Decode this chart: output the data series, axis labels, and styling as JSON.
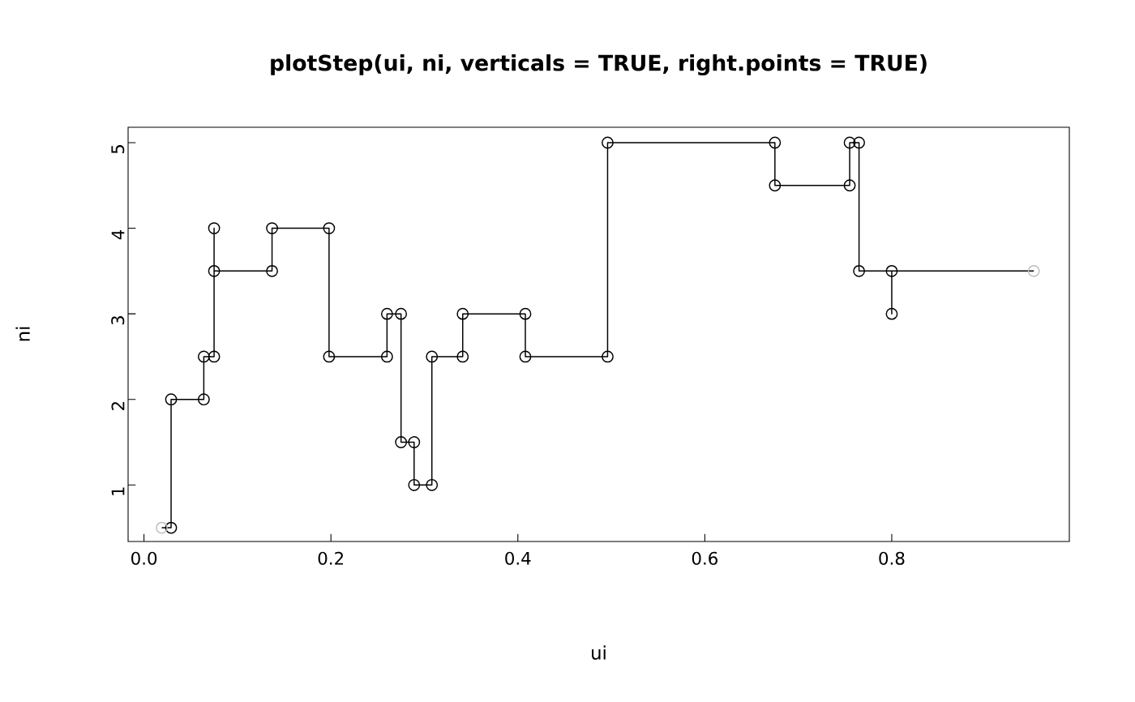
{
  "chart_data": {
    "type": "line",
    "title": "plotStep(ui, ni, verticals = TRUE, right.points = TRUE)",
    "xlabel": "ui",
    "ylabel": "ni",
    "xlim": [
      -0.017,
      0.99
    ],
    "ylim": [
      0.34,
      5.18
    ],
    "xticks": [
      {
        "value": 0,
        "label": "0.0"
      },
      0.2,
      0.4,
      0.6,
      0.8
    ],
    "yticks": [
      1,
      2,
      3,
      4,
      5
    ],
    "grid": false,
    "series": [
      {
        "marker": "none",
        "line_style": "solid",
        "color": "#000000",
        "x": [
          0.019,
          0.029,
          0.029,
          0.064,
          0.064,
          0.075,
          0.075,
          0.075,
          0.137,
          0.137,
          0.198,
          0.198,
          0.26,
          0.26,
          0.275,
          0.275,
          0.289,
          0.289,
          0.308,
          0.308,
          0.341,
          0.341,
          0.408,
          0.408,
          0.496,
          0.496,
          0.675,
          0.675,
          0.755,
          0.755,
          0.765,
          0.765,
          0.8,
          0.8,
          0.8,
          0.952
        ],
        "values": [
          0.5,
          0.5,
          2,
          2,
          2.5,
          2.5,
          4,
          3.5,
          3.5,
          4,
          4,
          2.5,
          2.5,
          3,
          3,
          1.5,
          1.5,
          1,
          1,
          2.5,
          2.5,
          3,
          3,
          2.5,
          2.5,
          5,
          5,
          4.5,
          4.5,
          5,
          5,
          3.5,
          3.5,
          3,
          3.5,
          3.5
        ]
      },
      {
        "type": "scatter",
        "marker": "circle",
        "color": "#000000",
        "x": [
          0.029,
          0.029,
          0.064,
          0.064,
          0.075,
          0.075,
          0.075,
          0.137,
          0.137,
          0.198,
          0.198,
          0.26,
          0.26,
          0.275,
          0.275,
          0.289,
          0.289,
          0.308,
          0.308,
          0.341,
          0.341,
          0.408,
          0.408,
          0.496,
          0.496,
          0.675,
          0.675,
          0.755,
          0.755,
          0.765,
          0.765,
          0.8,
          0.8
        ],
        "values": [
          0.5,
          2,
          2,
          2.5,
          2.5,
          4,
          3.5,
          3.5,
          4,
          4,
          2.5,
          2.5,
          3,
          3,
          1.5,
          1.5,
          1,
          1,
          2.5,
          2.5,
          3,
          3,
          2.5,
          2.5,
          5,
          5,
          4.5,
          4.5,
          5,
          5,
          3.5,
          3.5,
          3
        ]
      },
      {
        "type": "scatter",
        "marker": "circle",
        "color": "#bebebe",
        "x": [
          0.019,
          0.952
        ],
        "values": [
          0.5,
          3.5
        ]
      }
    ]
  }
}
